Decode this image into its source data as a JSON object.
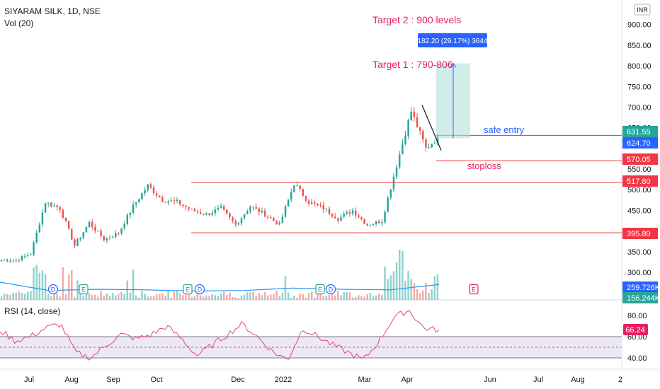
{
  "header": {
    "symbol": "SIYARAM SILK, 1D, NSE",
    "volume_indicator": "Vol (20)",
    "currency": "INR"
  },
  "annotations": {
    "target2": "Target 2 : 900 levels",
    "target1": "Target 1 : 790-806",
    "measure": "182.20 (29.17%) 3644",
    "safe_entry": "safe entry",
    "stoploss": "stoploss"
  },
  "colors": {
    "up": "#26a69a",
    "down": "#ef5350",
    "level_line": "#f23645",
    "entry_line": "#2962ff",
    "annotation_red": "#e91e63",
    "annotation_blue": "#2962ff",
    "rsi_line": "#e0457b",
    "rsi_band": "#ede7f6",
    "volume_ma": "#2196f3"
  },
  "price_axis": {
    "ticks": [
      "900.00",
      "850.00",
      "800.00",
      "750.00",
      "700.00",
      "650.00",
      "550.00",
      "500.00",
      "450.00",
      "400.00",
      "350.00",
      "300.00"
    ],
    "labels": [
      {
        "text": "631.55",
        "bg": "#26a69a"
      },
      {
        "text": "624.70",
        "bg": "#2962ff"
      },
      {
        "text": "570.05",
        "bg": "#f23645"
      },
      {
        "text": "517.80",
        "bg": "#f23645"
      },
      {
        "text": "395.80",
        "bg": "#f23645"
      },
      {
        "text": "259.726K",
        "bg": "#2962ff"
      },
      {
        "text": "156.244K",
        "bg": "#26a69a"
      }
    ]
  },
  "rsi": {
    "title": "RSI (14, close)",
    "ticks": [
      "80.00",
      "60.00",
      "40.00"
    ],
    "value_label": "66.24"
  },
  "time_axis": {
    "labels": [
      "Jul",
      "Aug",
      "Sep",
      "Oct",
      "Dec",
      "2022",
      "Mar",
      "Apr",
      "Jun",
      "Jul",
      "Aug",
      "2"
    ]
  },
  "events": [
    {
      "type": "dividend",
      "label": "D"
    },
    {
      "type": "earnings",
      "label": "E"
    },
    {
      "type": "earnings",
      "label": "E"
    },
    {
      "type": "dividend",
      "label": "D"
    },
    {
      "type": "earnings",
      "label": "E"
    },
    {
      "type": "dividend",
      "label": "D"
    },
    {
      "type": "earnings",
      "label": "E"
    }
  ],
  "chart_data": [
    {
      "type": "candlestick",
      "ylim": [
        280,
        920
      ],
      "levels": [
        {
          "name": "resistance",
          "value": 517.8
        },
        {
          "name": "support",
          "value": 395.8
        },
        {
          "name": "stoploss",
          "value": 570.05
        },
        {
          "name": "safe entry",
          "value": 631.55
        }
      ],
      "target_box": {
        "low": 624.7,
        "high": 806
      },
      "last_close": 631.55,
      "series": [
        {
          "name": "price",
          "segments": [
            {
              "from": 330,
              "to": 330
            },
            {
              "from": 330,
              "to": 345
            },
            {
              "from": 345,
              "to": 470
            },
            {
              "from": 470,
              "to": 455
            },
            {
              "from": 455,
              "to": 365
            },
            {
              "from": 365,
              "to": 420
            },
            {
              "from": 420,
              "to": 380
            },
            {
              "from": 380,
              "to": 395
            },
            {
              "from": 395,
              "to": 460
            },
            {
              "from": 460,
              "to": 510
            },
            {
              "from": 510,
              "to": 475
            },
            {
              "from": 475,
              "to": 470
            },
            {
              "from": 470,
              "to": 450
            },
            {
              "from": 450,
              "to": 440
            },
            {
              "from": 440,
              "to": 455
            },
            {
              "from": 455,
              "to": 415
            },
            {
              "from": 415,
              "to": 460
            },
            {
              "from": 460,
              "to": 440
            },
            {
              "from": 440,
              "to": 415
            },
            {
              "from": 415,
              "to": 515
            },
            {
              "from": 515,
              "to": 470
            },
            {
              "from": 470,
              "to": 455
            },
            {
              "from": 455,
              "to": 430
            },
            {
              "from": 430,
              "to": 450
            },
            {
              "from": 450,
              "to": 415
            },
            {
              "from": 415,
              "to": 425
            },
            {
              "from": 425,
              "to": 560
            },
            {
              "from": 560,
              "to": 690
            },
            {
              "from": 690,
              "to": 600
            },
            {
              "from": 600,
              "to": 631.55
            }
          ]
        }
      ]
    },
    {
      "type": "area",
      "name": "Vol (20)",
      "series": [
        {
          "name": "volume_ma",
          "values_k": [
            300,
            160,
            180,
            170,
            150,
            160,
            200,
            180,
            170,
            260
          ]
        }
      ]
    },
    {
      "type": "line",
      "name": "RSI (14, close)",
      "ylim": [
        35,
        90
      ],
      "band": [
        40,
        60
      ],
      "series": [
        {
          "name": "RSI",
          "values": [
            66,
            56,
            60,
            68,
            72,
            45,
            40,
            52,
            62,
            58,
            62,
            70,
            58,
            42,
            52,
            62,
            72,
            60,
            46,
            38,
            68,
            60,
            52,
            45,
            38,
            55,
            78,
            85,
            68,
            66.24
          ]
        }
      ]
    }
  ]
}
